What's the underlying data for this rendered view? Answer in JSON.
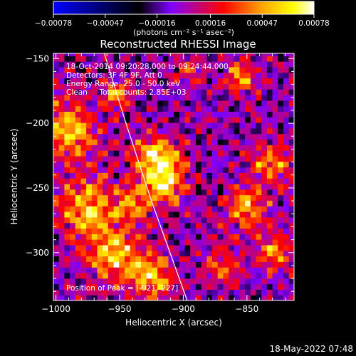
{
  "chart_data": {
    "type": "heatmap",
    "title": "Reconstructed RHESSI Image",
    "xlabel": "Heliocentric X (arcsec)",
    "ylabel": "Heliocentric Y (arcsec)",
    "xlim": [
      -1002,
      -813
    ],
    "ylim": [
      -337,
      -146
    ],
    "x_ticks": [
      -1000,
      -950,
      -900,
      -850
    ],
    "x_tick_labels": [
      "−1000",
      "−950",
      "−900",
      "−850"
    ],
    "y_ticks": [
      -300,
      -250,
      -200,
      -150
    ],
    "y_tick_labels": [
      "−300",
      "−250",
      "−200",
      "−150"
    ],
    "colorbar": {
      "min": -0.00078,
      "max": 0.00078,
      "ticks": [
        -0.00078,
        -0.00047,
        -0.00016,
        0.00016,
        0.00047,
        0.00078
      ],
      "tick_labels": [
        "−0.00078",
        "−0.00047",
        "−0.00016",
        "0.00016",
        "0.00047",
        "0.00078"
      ],
      "units": "(photons cm⁻² s⁻¹ asec⁻²)",
      "colormap": [
        "#0000ff",
        "#000000",
        "#7f00ff",
        "#ff0000",
        "#ffa500",
        "#ffff00",
        "#ffffff"
      ]
    },
    "grid": false,
    "peak_arcsec": [
      -921,
      -227
    ],
    "peak_value": 0.00078,
    "sources": [
      {
        "x": -921,
        "y": -227,
        "amp": 0.00078,
        "sigma": 12
      },
      {
        "x": -914,
        "y": -248,
        "amp": 0.00055,
        "sigma": 10
      },
      {
        "x": -952,
        "y": -178,
        "amp": 0.00052,
        "sigma": 7
      },
      {
        "x": -990,
        "y": -205,
        "amp": 0.0006,
        "sigma": 16
      },
      {
        "x": -975,
        "y": -265,
        "amp": 0.00058,
        "sigma": 16
      },
      {
        "x": -955,
        "y": -300,
        "amp": 0.0006,
        "sigma": 14
      },
      {
        "x": -925,
        "y": -318,
        "amp": 0.00058,
        "sigma": 12
      },
      {
        "x": -938,
        "y": -262,
        "amp": 0.00045,
        "sigma": 10
      },
      {
        "x": -855,
        "y": -165,
        "amp": 0.0005,
        "sigma": 9
      },
      {
        "x": -832,
        "y": -230,
        "amp": 0.00048,
        "sigma": 11
      },
      {
        "x": -850,
        "y": -265,
        "amp": 0.00052,
        "sigma": 11
      },
      {
        "x": -830,
        "y": -300,
        "amp": 0.00045,
        "sigma": 10
      },
      {
        "x": -870,
        "y": -310,
        "amp": 0.00035,
        "sigma": 10
      },
      {
        "x": -895,
        "y": -160,
        "amp": 0.0003,
        "sigma": 8
      }
    ],
    "limb_line": [
      [
        -962,
        -146
      ],
      [
        -945,
        -200
      ],
      [
        -925,
        -260
      ],
      [
        -897,
        -337
      ]
    ]
  },
  "annotations": {
    "time_range": "18-Oct-2014 09:20:28.000 to 09:24:44.000",
    "detectors": "Detectors: 3F 4F 9F, Att 0",
    "energy": "Energy Range: 25.0 - 50.0 keV",
    "clean": "Clean     Total counts: 2.85E+03",
    "peak_label": "Position of Peak = [-921,-227]"
  },
  "footer": {
    "timestamp": "18-May-2022 07:48"
  }
}
